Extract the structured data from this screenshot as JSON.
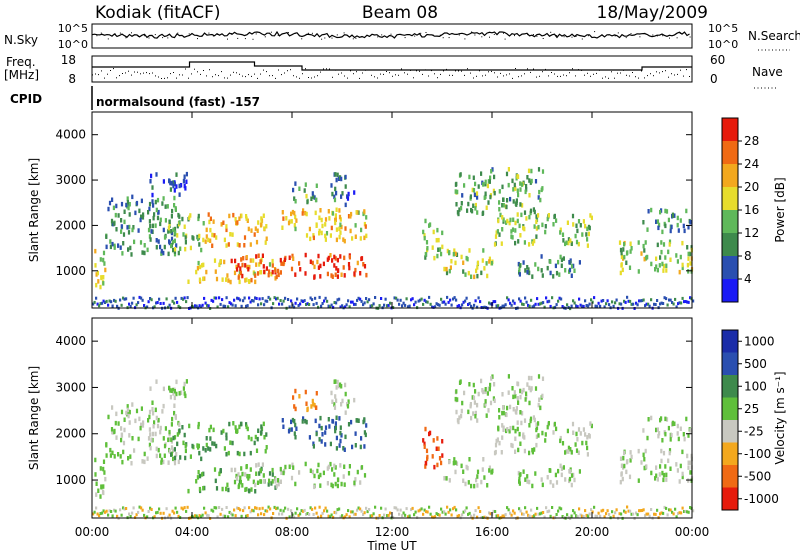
{
  "header": {
    "station": "Kodiak (fitACF)",
    "beam": "Beam 08",
    "date": "18/May/2009"
  },
  "noise_panel": {
    "left_label": "N.Sky",
    "right_label": "N.Search",
    "left_ticks": [
      "10^5",
      "10^0"
    ],
    "right_ticks": [
      "10^5",
      "10^0"
    ]
  },
  "freq_panel": {
    "left_label_1": "Freq.",
    "left_label_2": "[MHz]",
    "right_label": "Nave",
    "left_ticks": [
      "18",
      "8"
    ],
    "right_ticks": [
      "60",
      "0"
    ]
  },
  "cpid": {
    "label": "CPID",
    "value": "normalsound (fast) -157"
  },
  "colors": {
    "power": [
      "#1b1bf5",
      "#2a4fb0",
      "#3e8a4c",
      "#5fb85a",
      "#e7dc2c",
      "#f3a81e",
      "#f06a14",
      "#e61b0c"
    ],
    "velocity": [
      "#e61b0c",
      "#f06a14",
      "#f3a81e",
      "#c8c8c0",
      "#5fbf3a",
      "#3e8a4c",
      "#2a4fb0",
      "#1a2ca8"
    ]
  },
  "chart_data": [
    {
      "type": "heatmap",
      "name": "power",
      "ylabel": "Slant Range [km]",
      "ylim": [
        180,
        4500
      ],
      "yticks": [
        "1000",
        "2000",
        "3000",
        "4000"
      ],
      "colorbar_label": "Power [dB]",
      "colorbar_ticks": [
        "4",
        "8",
        "12",
        "16",
        "20",
        "24",
        "28"
      ],
      "colorbar_range": [
        0,
        32
      ],
      "grid": false
    },
    {
      "type": "heatmap",
      "name": "velocity",
      "ylabel": "Slant Range [km]",
      "ylim": [
        180,
        4500
      ],
      "yticks": [
        "1000",
        "2000",
        "3000",
        "4000"
      ],
      "colorbar_label": "Velocity [m s⁻¹]",
      "colorbar_ticks": [
        "1000",
        "500",
        "100",
        "25",
        "-25",
        "-100",
        "-500",
        "-1000"
      ],
      "grid": false
    }
  ],
  "x_axis": {
    "label": "Time UT",
    "ticks": [
      "00:00",
      "04:00",
      "08:00",
      "12:00",
      "16:00",
      "20:00",
      "00:00"
    ],
    "range_hours": [
      0,
      24
    ]
  },
  "echo_regions": [
    {
      "t": [
        0.0,
        0.5
      ],
      "r": [
        600,
        1600
      ],
      "p": 18,
      "v": 25
    },
    {
      "t": [
        0.5,
        3.5
      ],
      "r": [
        1400,
        2700
      ],
      "p": 10,
      "v": 25
    },
    {
      "t": [
        2.2,
        3.8
      ],
      "r": [
        2700,
        3200
      ],
      "p": 6,
      "v": 25
    },
    {
      "t": [
        3.0,
        4.5
      ],
      "r": [
        1500,
        2300
      ],
      "p": 14,
      "v": 100
    },
    {
      "t": [
        3.8,
        7.3
      ],
      "r": [
        800,
        1300
      ],
      "p": 20,
      "v": 100
    },
    {
      "t": [
        4.5,
        7.0
      ],
      "r": [
        1600,
        2300
      ],
      "p": 22,
      "v": 100
    },
    {
      "t": [
        5.5,
        11.0
      ],
      "r": [
        900,
        1400
      ],
      "p": 28,
      "v": 25
    },
    {
      "t": [
        7.5,
        11.0
      ],
      "r": [
        1700,
        2400
      ],
      "p": 20,
      "v": 500
    },
    {
      "t": [
        8.0,
        9.0
      ],
      "r": [
        2500,
        3000
      ],
      "p": 12,
      "v": -100
    },
    {
      "t": [
        9.5,
        10.5
      ],
      "r": [
        2500,
        3200
      ],
      "p": 8,
      "v": 25
    },
    {
      "t": [
        13.2,
        14.0
      ],
      "r": [
        1300,
        2200
      ],
      "p": 14,
      "v": -500
    },
    {
      "t": [
        14.0,
        16.0
      ],
      "r": [
        900,
        1500
      ],
      "p": 16,
      "v": 25
    },
    {
      "t": [
        14.5,
        18.0
      ],
      "r": [
        2300,
        3300
      ],
      "p": 12,
      "v": 25
    },
    {
      "t": [
        16.0,
        20.0
      ],
      "r": [
        1600,
        2300
      ],
      "p": 14,
      "v": 25
    },
    {
      "t": [
        17.0,
        19.5
      ],
      "r": [
        900,
        1400
      ],
      "p": 10,
      "v": 25
    },
    {
      "t": [
        21.0,
        24.0
      ],
      "r": [
        1000,
        1700
      ],
      "p": 16,
      "v": 25
    },
    {
      "t": [
        22.0,
        24.0
      ],
      "r": [
        1900,
        2400
      ],
      "p": 10,
      "v": 25
    }
  ]
}
